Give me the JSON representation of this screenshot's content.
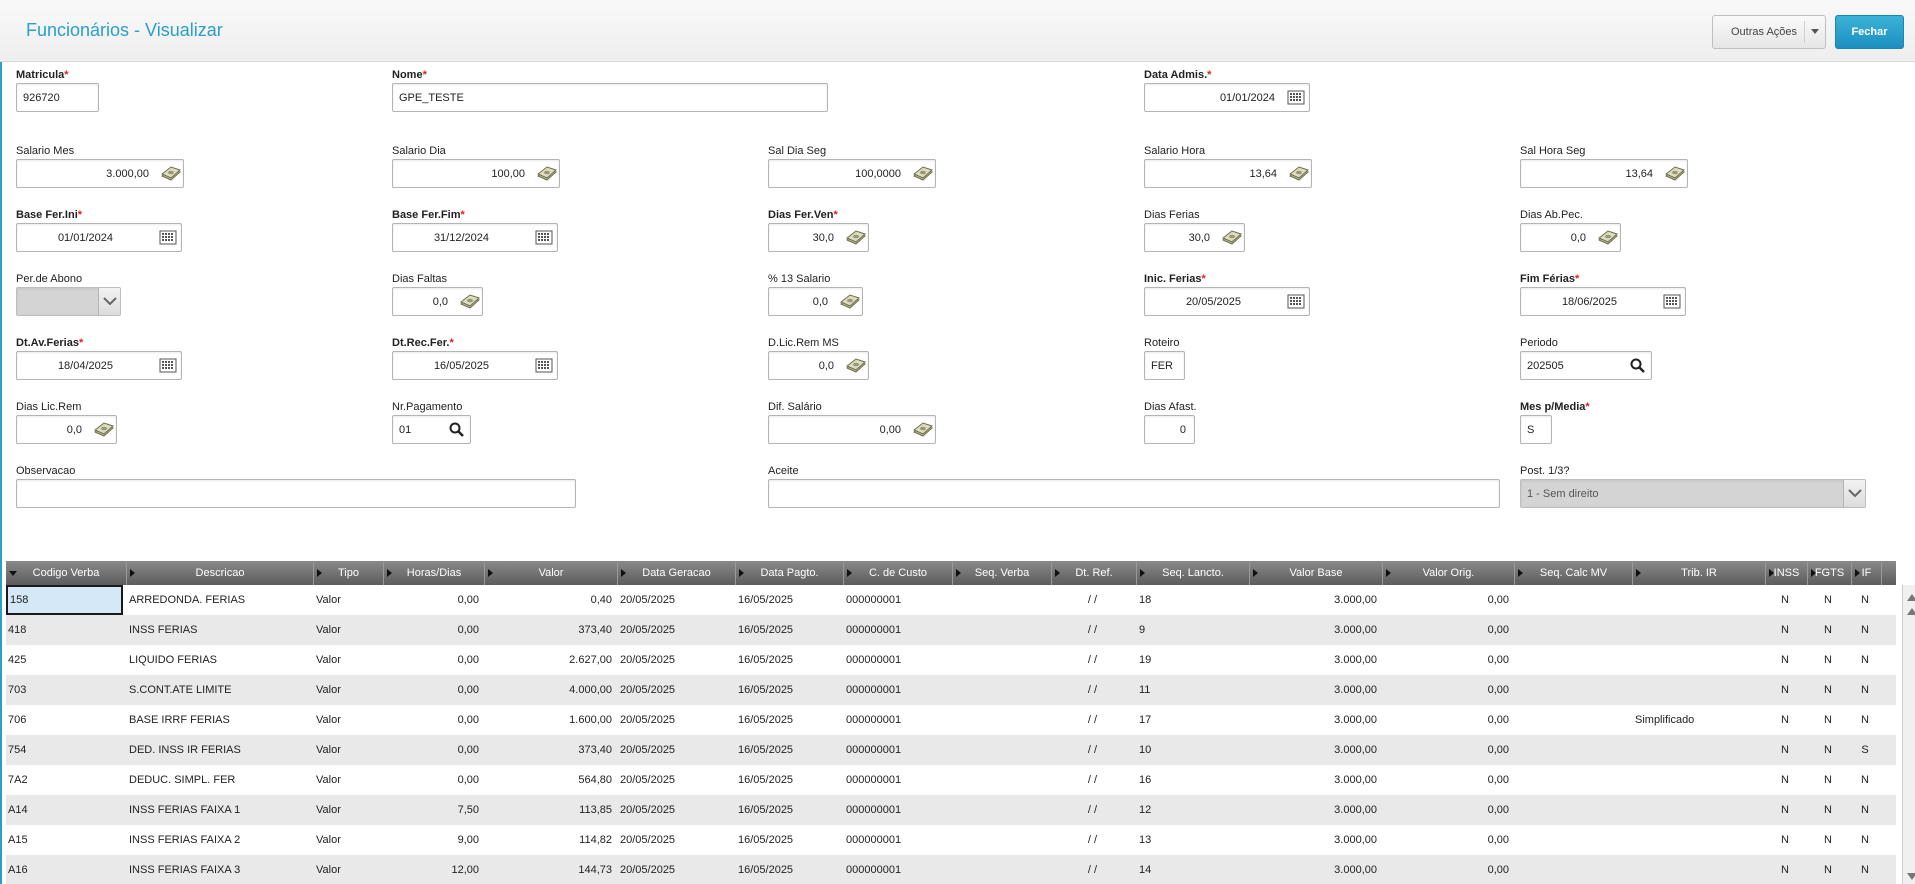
{
  "header": {
    "title": "Funcionários - Visualizar",
    "other_actions": "Outras Ações",
    "close": "Fechar"
  },
  "fields": {
    "matricula": {
      "label": "Matricula",
      "value": "926720"
    },
    "nome": {
      "label": "Nome",
      "value": "GPE_TESTE"
    },
    "data_admis": {
      "label": "Data Admis.",
      "value": "01/01/2024",
      "icon": "calendar-icon"
    },
    "salario_mes": {
      "label": "Salario Mes",
      "value": "3.000,00",
      "icon": "money-icon"
    },
    "salario_dia": {
      "label": "Salario Dia",
      "value": "100,00",
      "icon": "money-icon"
    },
    "sal_dia_seg": {
      "label": "Sal Dia Seg",
      "value": "100,0000",
      "icon": "money-icon"
    },
    "salario_hora": {
      "label": "Salario Hora",
      "value": "13,64",
      "icon": "money-icon"
    },
    "sal_hora_seg": {
      "label": "Sal Hora Seg",
      "value": "13,64",
      "icon": "money-icon"
    },
    "base_fer_ini": {
      "label": "Base Fer.Ini",
      "value": "01/01/2024",
      "icon": "calendar-icon"
    },
    "base_fer_fim": {
      "label": "Base Fer.Fim",
      "value": "31/12/2024",
      "icon": "calendar-icon"
    },
    "dias_fer_ven": {
      "label": "Dias Fer.Ven",
      "value": "30,0",
      "icon": "money-icon"
    },
    "dias_ferias": {
      "label": "Dias Ferias",
      "value": "30,0",
      "icon": "money-icon"
    },
    "dias_ab_pec": {
      "label": "Dias Ab.Pec.",
      "value": "0,0",
      "icon": "money-icon"
    },
    "per_de_abono": {
      "label": "Per.de Abono",
      "value": "",
      "icon": "chevron-down-icon"
    },
    "dias_faltas": {
      "label": "Dias Faltas",
      "value": "0,0",
      "icon": "money-icon"
    },
    "pct_13_salario": {
      "label": "% 13 Salario",
      "value": "0,0",
      "icon": "money-icon"
    },
    "inic_ferias": {
      "label": "Inic. Ferias",
      "value": "20/05/2025",
      "icon": "calendar-icon"
    },
    "fim_ferias": {
      "label": "Fim Férias",
      "value": "18/06/2025",
      "icon": "calendar-icon"
    },
    "dt_av_ferias": {
      "label": "Dt.Av.Ferias",
      "value": "18/04/2025",
      "icon": "calendar-icon"
    },
    "dt_rec_fer": {
      "label": "Dt.Rec.Fer.",
      "value": "16/05/2025",
      "icon": "calendar-icon"
    },
    "d_lic_rem_ms": {
      "label": "D.Lic.Rem MS",
      "value": "0,0",
      "icon": "money-icon"
    },
    "roteiro": {
      "label": "Roteiro",
      "value": "FER"
    },
    "periodo": {
      "label": "Periodo",
      "value": "202505",
      "icon": "search-icon"
    },
    "dias_lic_rem": {
      "label": "Dias Lic.Rem",
      "value": "0,0",
      "icon": "money-icon"
    },
    "nr_pagamento": {
      "label": "Nr.Pagamento",
      "value": "01",
      "icon": "search-icon"
    },
    "dif_salario": {
      "label": "Dif. Salário",
      "value": "0,00",
      "icon": "money-icon"
    },
    "dias_afast": {
      "label": "Dias Afast.",
      "value": "0"
    },
    "mes_p_media": {
      "label": "Mes p/Media",
      "value": "S"
    },
    "observacao": {
      "label": "Observacao",
      "value": ""
    },
    "aceite": {
      "label": "Aceite",
      "value": ""
    },
    "post_1_3": {
      "label": "Post. 1/3?",
      "value": "1 - Sem direito",
      "icon": "chevron-down-icon"
    }
  },
  "grid": {
    "columns": [
      "Codigo Verba",
      "Descricao",
      "Tipo",
      "Horas/Dias",
      "Valor",
      "Data Geracao",
      "Data Pagto.",
      "C. de Custo",
      "Seq. Verba",
      "Dt. Ref.",
      "Seq. Lancto.",
      "Valor Base",
      "Valor Orig.",
      "Seq. Calc MV",
      "Trib. IR",
      "INSS",
      "FGTS",
      "IF"
    ],
    "rows": [
      [
        "158",
        "ARREDONDA. FERIAS",
        "Valor",
        "0,00",
        "0,40",
        "20/05/2025",
        "16/05/2025",
        "000000001",
        "",
        "/ /",
        "18",
        "3.000,00",
        "0,00",
        "",
        "",
        "N",
        "N",
        "N"
      ],
      [
        "418",
        "INSS FERIAS",
        "Valor",
        "0,00",
        "373,40",
        "20/05/2025",
        "16/05/2025",
        "000000001",
        "",
        "/ /",
        "9",
        "3.000,00",
        "0,00",
        "",
        "",
        "N",
        "N",
        "N"
      ],
      [
        "425",
        "LIQUIDO FERIAS",
        "Valor",
        "0,00",
        "2.627,00",
        "20/05/2025",
        "16/05/2025",
        "000000001",
        "",
        "/ /",
        "19",
        "3.000,00",
        "0,00",
        "",
        "",
        "N",
        "N",
        "N"
      ],
      [
        "703",
        "S.CONT.ATE LIMITE",
        "Valor",
        "0,00",
        "4.000,00",
        "20/05/2025",
        "16/05/2025",
        "000000001",
        "",
        "/ /",
        "11",
        "3.000,00",
        "0,00",
        "",
        "",
        "N",
        "N",
        "N"
      ],
      [
        "706",
        "BASE IRRF FERIAS",
        "Valor",
        "0,00",
        "1.600,00",
        "20/05/2025",
        "16/05/2025",
        "000000001",
        "",
        "/ /",
        "17",
        "3.000,00",
        "0,00",
        "",
        "Simplificado",
        "N",
        "N",
        "N"
      ],
      [
        "754",
        "DED. INSS IR FERIAS",
        "Valor",
        "0,00",
        "373,40",
        "20/05/2025",
        "16/05/2025",
        "000000001",
        "",
        "/ /",
        "10",
        "3.000,00",
        "0,00",
        "",
        "",
        "N",
        "N",
        "S"
      ],
      [
        "7A2",
        "DEDUC. SIMPL. FER",
        "Valor",
        "0,00",
        "564,80",
        "20/05/2025",
        "16/05/2025",
        "000000001",
        "",
        "/ /",
        "16",
        "3.000,00",
        "0,00",
        "",
        "",
        "N",
        "N",
        "N"
      ],
      [
        "A14",
        "INSS FERIAS FAIXA 1",
        "Valor",
        "7,50",
        "113,85",
        "20/05/2025",
        "16/05/2025",
        "000000001",
        "",
        "/ /",
        "12",
        "3.000,00",
        "0,00",
        "",
        "",
        "N",
        "N",
        "N"
      ],
      [
        "A15",
        "INSS FERIAS FAIXA 2",
        "Valor",
        "9,00",
        "114,82",
        "20/05/2025",
        "16/05/2025",
        "000000001",
        "",
        "/ /",
        "13",
        "3.000,00",
        "0,00",
        "",
        "",
        "N",
        "N",
        "N"
      ],
      [
        "A16",
        "INSS FERIAS FAIXA 3",
        "Valor",
        "12,00",
        "144,73",
        "20/05/2025",
        "16/05/2025",
        "000000001",
        "",
        "/ /",
        "14",
        "3.000,00",
        "0,00",
        "",
        "",
        "N",
        "N",
        "N"
      ]
    ]
  },
  "colors": {
    "accent": "#2a9fc7",
    "required": "#e0201a",
    "header_grid": "#6e6e6e",
    "row_alt": "#e9e9e9"
  }
}
